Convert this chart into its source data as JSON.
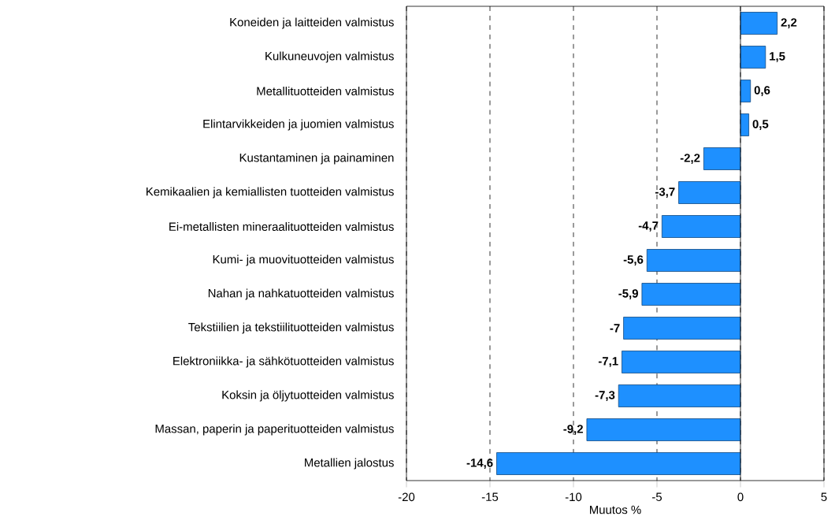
{
  "chart_data": {
    "type": "bar",
    "orientation": "horizontal",
    "xlabel": "Muutos %",
    "categories": [
      "Koneiden ja laitteiden valmistus",
      "Kulkuneuvojen valmistus",
      "Metallituotteiden valmistus",
      "Elintarvikkeiden ja juomien valmistus",
      "Kustantaminen ja painaminen",
      "Kemikaalien ja kemiallisten tuotteiden valmistus",
      "Ei-metallisten mineraalituotteiden valmistus",
      "Kumi- ja muovituotteiden valmistus",
      "Nahan ja nahkatuotteiden valmistus",
      "Tekstiilien ja tekstiilituotteiden valmistus",
      "Elektroniikka- ja sähkötuotteiden valmistus",
      "Koksin ja öljytuotteiden valmistus",
      "Massan, paperin ja paperituotteiden valmistus",
      "Metallien jalostus"
    ],
    "values": [
      2.2,
      1.5,
      0.6,
      0.5,
      -2.2,
      -3.7,
      -4.7,
      -5.6,
      -5.9,
      -7,
      -7.1,
      -7.3,
      -9.2,
      -14.6
    ],
    "value_labels": [
      "2,2",
      "1,5",
      "0,6",
      "0,5",
      "-2,2",
      "-3,7",
      "-4,7",
      "-5,6",
      "-5,9",
      "-7",
      "-7,1",
      "-7,3",
      "-9,2",
      "-14,6"
    ],
    "color": "#1e90ff",
    "xlim": [
      -20,
      5
    ],
    "xticks": [
      -20,
      -15,
      -10,
      -5,
      0,
      5
    ],
    "grid": "x"
  }
}
